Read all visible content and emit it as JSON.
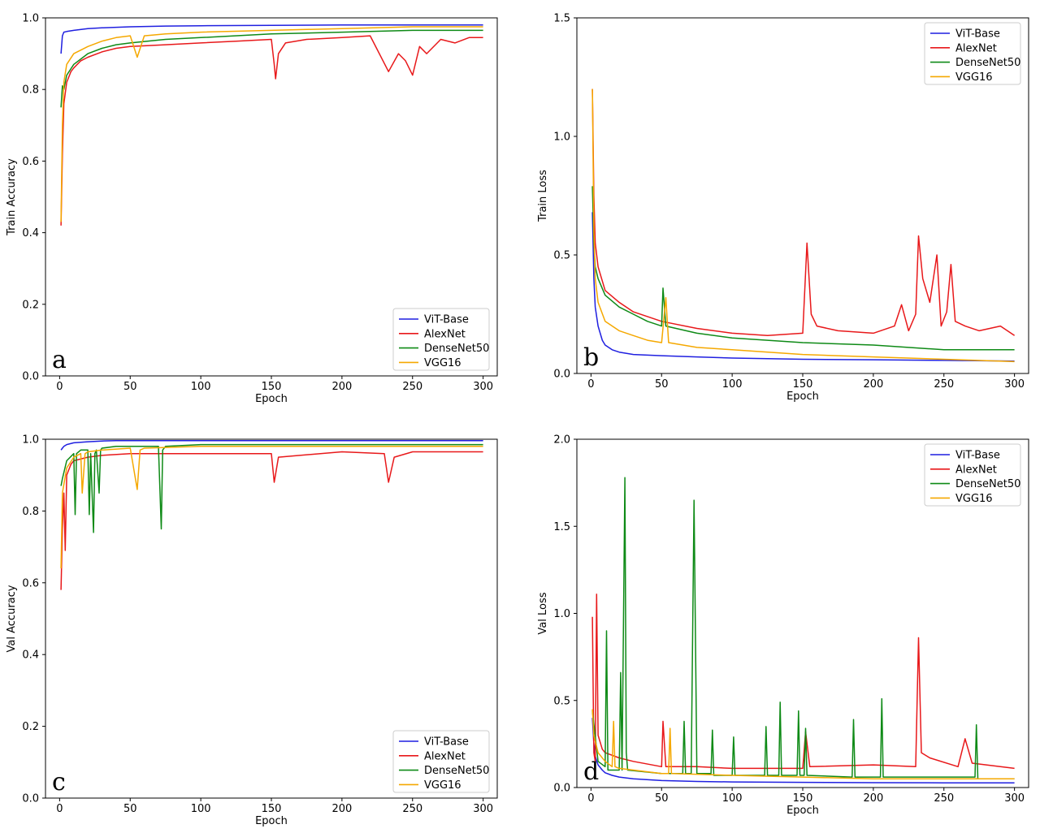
{
  "figure": {
    "series_colors": {
      "ViT-Base": "#1f1fe0",
      "AlexNet": "#e8181a",
      "DenseNet50": "#0e8a16",
      "VGG16": "#f5a800"
    }
  },
  "chart_data": [
    {
      "id": "a",
      "type": "line",
      "panel_letter": "a",
      "title": "",
      "xlabel": "Epoch",
      "ylabel": "Train Accuracy",
      "xlim": [
        -10,
        310
      ],
      "ylim": [
        0.0,
        1.0
      ],
      "xticks": [
        0,
        50,
        100,
        150,
        200,
        250,
        300
      ],
      "yticks": [
        0.0,
        0.2,
        0.4,
        0.6,
        0.8,
        1.0
      ],
      "ytick_labels": [
        "0.0",
        "0.2",
        "0.4",
        "0.6",
        "0.8",
        "1.0"
      ],
      "legend_location": "lower-right",
      "legend": [
        "ViT-Base",
        "AlexNet",
        "DenseNet50",
        "VGG16"
      ],
      "series": [
        {
          "name": "ViT-Base",
          "color": "#1f1fe0",
          "x": [
            1,
            2,
            3,
            5,
            10,
            20,
            30,
            50,
            75,
            100,
            150,
            200,
            250,
            300
          ],
          "values": [
            0.9,
            0.95,
            0.96,
            0.962,
            0.965,
            0.97,
            0.972,
            0.975,
            0.977,
            0.978,
            0.979,
            0.98,
            0.98,
            0.98
          ]
        },
        {
          "name": "AlexNet",
          "color": "#e8181a",
          "x": [
            1,
            2,
            3,
            5,
            8,
            10,
            15,
            20,
            30,
            40,
            50,
            75,
            100,
            125,
            150,
            152,
            153,
            155,
            160,
            175,
            200,
            220,
            233,
            240,
            245,
            250,
            255,
            260,
            270,
            280,
            290,
            300
          ],
          "values": [
            0.42,
            0.62,
            0.76,
            0.82,
            0.85,
            0.86,
            0.88,
            0.89,
            0.905,
            0.915,
            0.92,
            0.925,
            0.93,
            0.935,
            0.94,
            0.87,
            0.83,
            0.9,
            0.93,
            0.94,
            0.945,
            0.95,
            0.85,
            0.9,
            0.88,
            0.84,
            0.92,
            0.9,
            0.94,
            0.93,
            0.945,
            0.945
          ]
        },
        {
          "name": "DenseNet50",
          "color": "#0e8a16",
          "x": [
            1,
            2,
            3,
            5,
            10,
            20,
            30,
            40,
            50,
            75,
            100,
            150,
            200,
            250,
            300
          ],
          "values": [
            0.75,
            0.81,
            0.8,
            0.84,
            0.87,
            0.9,
            0.915,
            0.925,
            0.93,
            0.94,
            0.945,
            0.955,
            0.96,
            0.965,
            0.965
          ]
        },
        {
          "name": "VGG16",
          "color": "#f5a800",
          "x": [
            1,
            2,
            3,
            5,
            10,
            20,
            30,
            40,
            50,
            55,
            60,
            75,
            100,
            150,
            200,
            250,
            300
          ],
          "values": [
            0.43,
            0.7,
            0.82,
            0.87,
            0.9,
            0.92,
            0.935,
            0.945,
            0.95,
            0.89,
            0.95,
            0.955,
            0.96,
            0.965,
            0.97,
            0.975,
            0.975
          ]
        }
      ]
    },
    {
      "id": "b",
      "type": "line",
      "panel_letter": "b",
      "title": "",
      "xlabel": "Epoch",
      "ylabel": "Train Loss",
      "xlim": [
        -10,
        310
      ],
      "ylim": [
        0.0,
        1.5
      ],
      "xticks": [
        0,
        50,
        100,
        150,
        200,
        250,
        300
      ],
      "yticks": [
        0.0,
        0.5,
        1.0,
        1.5
      ],
      "ytick_labels": [
        "0.0",
        "0.5",
        "1.0",
        "1.5"
      ],
      "legend_location": "upper-right",
      "legend": [
        "ViT-Base",
        "AlexNet",
        "DenseNet50",
        "VGG16"
      ],
      "series": [
        {
          "name": "ViT-Base",
          "color": "#1f1fe0",
          "x": [
            1,
            2,
            3,
            5,
            8,
            10,
            15,
            20,
            30,
            50,
            75,
            100,
            150,
            200,
            250,
            300
          ],
          "values": [
            0.68,
            0.4,
            0.28,
            0.2,
            0.14,
            0.12,
            0.1,
            0.09,
            0.08,
            0.075,
            0.07,
            0.065,
            0.06,
            0.058,
            0.055,
            0.052
          ]
        },
        {
          "name": "AlexNet",
          "color": "#e8181a",
          "x": [
            1,
            2,
            3,
            5,
            10,
            20,
            30,
            40,
            50,
            75,
            100,
            125,
            150,
            153,
            156,
            160,
            175,
            200,
            215,
            220,
            225,
            230,
            232,
            235,
            240,
            245,
            248,
            252,
            255,
            258,
            265,
            275,
            290,
            300
          ],
          "values": [
            1.2,
            0.75,
            0.55,
            0.45,
            0.35,
            0.3,
            0.26,
            0.24,
            0.22,
            0.19,
            0.17,
            0.16,
            0.17,
            0.55,
            0.25,
            0.2,
            0.18,
            0.17,
            0.2,
            0.29,
            0.18,
            0.25,
            0.58,
            0.4,
            0.3,
            0.5,
            0.2,
            0.26,
            0.46,
            0.22,
            0.2,
            0.18,
            0.2,
            0.16
          ]
        },
        {
          "name": "DenseNet50",
          "color": "#0e8a16",
          "x": [
            1,
            2,
            3,
            5,
            10,
            20,
            30,
            40,
            50,
            51,
            53,
            75,
            100,
            150,
            200,
            250,
            300
          ],
          "values": [
            0.79,
            0.55,
            0.45,
            0.4,
            0.33,
            0.28,
            0.25,
            0.22,
            0.2,
            0.36,
            0.2,
            0.17,
            0.15,
            0.13,
            0.12,
            0.1,
            0.1
          ]
        },
        {
          "name": "VGG16",
          "color": "#f5a800",
          "x": [
            1,
            2,
            3,
            5,
            10,
            20,
            30,
            40,
            50,
            53,
            55,
            75,
            100,
            150,
            200,
            250,
            300
          ],
          "values": [
            1.2,
            0.6,
            0.4,
            0.3,
            0.22,
            0.18,
            0.16,
            0.14,
            0.13,
            0.32,
            0.13,
            0.11,
            0.1,
            0.08,
            0.07,
            0.06,
            0.05
          ]
        }
      ]
    },
    {
      "id": "c",
      "type": "line",
      "panel_letter": "c",
      "title": "",
      "xlabel": "Epoch",
      "ylabel": "Val Accuracy",
      "xlim": [
        -10,
        310
      ],
      "ylim": [
        0.0,
        1.0
      ],
      "xticks": [
        0,
        50,
        100,
        150,
        200,
        250,
        300
      ],
      "yticks": [
        0.0,
        0.2,
        0.4,
        0.6,
        0.8,
        1.0
      ],
      "ytick_labels": [
        "0.0",
        "0.2",
        "0.4",
        "0.6",
        "0.8",
        "1.0"
      ],
      "legend_location": "lower-right",
      "legend": [
        "ViT-Base",
        "AlexNet",
        "DenseNet50",
        "VGG16"
      ],
      "series": [
        {
          "name": "ViT-Base",
          "color": "#1f1fe0",
          "x": [
            1,
            2,
            3,
            5,
            10,
            20,
            30,
            40,
            50,
            100,
            150,
            200,
            250,
            300
          ],
          "values": [
            0.97,
            0.975,
            0.98,
            0.985,
            0.99,
            0.993,
            0.995,
            0.996,
            0.996,
            0.996,
            0.996,
            0.996,
            0.996,
            0.996
          ]
        },
        {
          "name": "AlexNet",
          "color": "#e8181a",
          "x": [
            1,
            2,
            3,
            4,
            5,
            8,
            10,
            20,
            30,
            50,
            100,
            150,
            152,
            155,
            200,
            230,
            233,
            237,
            250,
            300
          ],
          "values": [
            0.58,
            0.75,
            0.85,
            0.69,
            0.9,
            0.93,
            0.94,
            0.95,
            0.955,
            0.96,
            0.96,
            0.96,
            0.88,
            0.95,
            0.965,
            0.96,
            0.88,
            0.95,
            0.965,
            0.965
          ]
        },
        {
          "name": "DenseNet50",
          "color": "#0e8a16",
          "x": [
            1,
            2,
            5,
            10,
            11,
            12,
            15,
            20,
            21,
            22,
            24,
            25,
            26,
            28,
            29,
            30,
            40,
            50,
            70,
            72,
            73,
            75,
            100,
            150,
            200,
            250,
            300
          ],
          "values": [
            0.87,
            0.89,
            0.94,
            0.96,
            0.79,
            0.96,
            0.97,
            0.97,
            0.79,
            0.96,
            0.74,
            0.96,
            0.97,
            0.85,
            0.97,
            0.975,
            0.98,
            0.98,
            0.98,
            0.75,
            0.97,
            0.98,
            0.985,
            0.985,
            0.985,
            0.985,
            0.985
          ]
        },
        {
          "name": "VGG16",
          "color": "#f5a800",
          "x": [
            1,
            2,
            5,
            10,
            15,
            16,
            18,
            20,
            30,
            50,
            55,
            57,
            60,
            100,
            150,
            200,
            250,
            300
          ],
          "values": [
            0.64,
            0.85,
            0.92,
            0.95,
            0.96,
            0.85,
            0.96,
            0.965,
            0.97,
            0.975,
            0.86,
            0.97,
            0.975,
            0.98,
            0.98,
            0.98,
            0.98,
            0.98
          ]
        }
      ]
    },
    {
      "id": "d",
      "type": "line",
      "panel_letter": "d",
      "title": "",
      "xlabel": "Epoch",
      "ylabel": "Val Loss",
      "xlim": [
        -10,
        310
      ],
      "ylim": [
        0.0,
        2.0
      ],
      "xticks": [
        0,
        50,
        100,
        150,
        200,
        250,
        300
      ],
      "yticks": [
        0.0,
        0.5,
        1.0,
        1.5,
        2.0
      ],
      "ytick_labels": [
        "0.0",
        "0.5",
        "1.0",
        "1.5",
        "2.0"
      ],
      "legend_location": "upper-right",
      "legend": [
        "ViT-Base",
        "AlexNet",
        "DenseNet50",
        "VGG16"
      ],
      "series": [
        {
          "name": "ViT-Base",
          "color": "#1f1fe0",
          "x": [
            1,
            2,
            3,
            5,
            8,
            10,
            15,
            20,
            30,
            50,
            75,
            100,
            150,
            200,
            250,
            300
          ],
          "values": [
            0.4,
            0.25,
            0.18,
            0.13,
            0.1,
            0.085,
            0.07,
            0.06,
            0.05,
            0.04,
            0.035,
            0.032,
            0.03,
            0.028,
            0.027,
            0.027
          ]
        },
        {
          "name": "AlexNet",
          "color": "#e8181a",
          "x": [
            1,
            2,
            3,
            4,
            5,
            8,
            10,
            20,
            30,
            50,
            51,
            53,
            75,
            100,
            150,
            152,
            155,
            200,
            230,
            232,
            234,
            240,
            260,
            265,
            270,
            300
          ],
          "values": [
            0.98,
            0.2,
            0.15,
            1.11,
            0.3,
            0.22,
            0.2,
            0.17,
            0.15,
            0.12,
            0.38,
            0.12,
            0.12,
            0.11,
            0.11,
            0.32,
            0.12,
            0.13,
            0.12,
            0.86,
            0.2,
            0.17,
            0.12,
            0.28,
            0.14,
            0.11
          ]
        },
        {
          "name": "DenseNet50",
          "color": "#0e8a16",
          "x": [
            1,
            5,
            10,
            11,
            12,
            20,
            21,
            22,
            24,
            25,
            26,
            50,
            65,
            66,
            67,
            71,
            73,
            75,
            85,
            86,
            87,
            100,
            101,
            102,
            123,
            124,
            125,
            133,
            134,
            135,
            146,
            147,
            148,
            151,
            152,
            153,
            185,
            186,
            187,
            205,
            206,
            207,
            272,
            273,
            274,
            300
          ],
          "values": [
            0.44,
            0.15,
            0.12,
            0.9,
            0.1,
            0.1,
            0.66,
            0.1,
            1.78,
            0.2,
            0.1,
            0.08,
            0.08,
            0.38,
            0.08,
            0.08,
            1.65,
            0.08,
            0.08,
            0.33,
            0.07,
            0.07,
            0.29,
            0.07,
            0.07,
            0.35,
            0.07,
            0.07,
            0.49,
            0.07,
            0.07,
            0.44,
            0.07,
            0.07,
            0.34,
            0.07,
            0.06,
            0.39,
            0.06,
            0.06,
            0.51,
            0.06,
            0.06,
            0.36,
            0.05,
            0.05
          ]
        },
        {
          "name": "VGG16",
          "color": "#f5a800",
          "x": [
            1,
            2,
            5,
            10,
            15,
            16,
            17,
            20,
            30,
            50,
            55,
            56,
            57,
            100,
            150,
            200,
            250,
            300
          ],
          "values": [
            0.45,
            0.3,
            0.2,
            0.15,
            0.12,
            0.38,
            0.12,
            0.11,
            0.1,
            0.08,
            0.08,
            0.34,
            0.08,
            0.07,
            0.06,
            0.05,
            0.05,
            0.05
          ]
        }
      ]
    }
  ]
}
